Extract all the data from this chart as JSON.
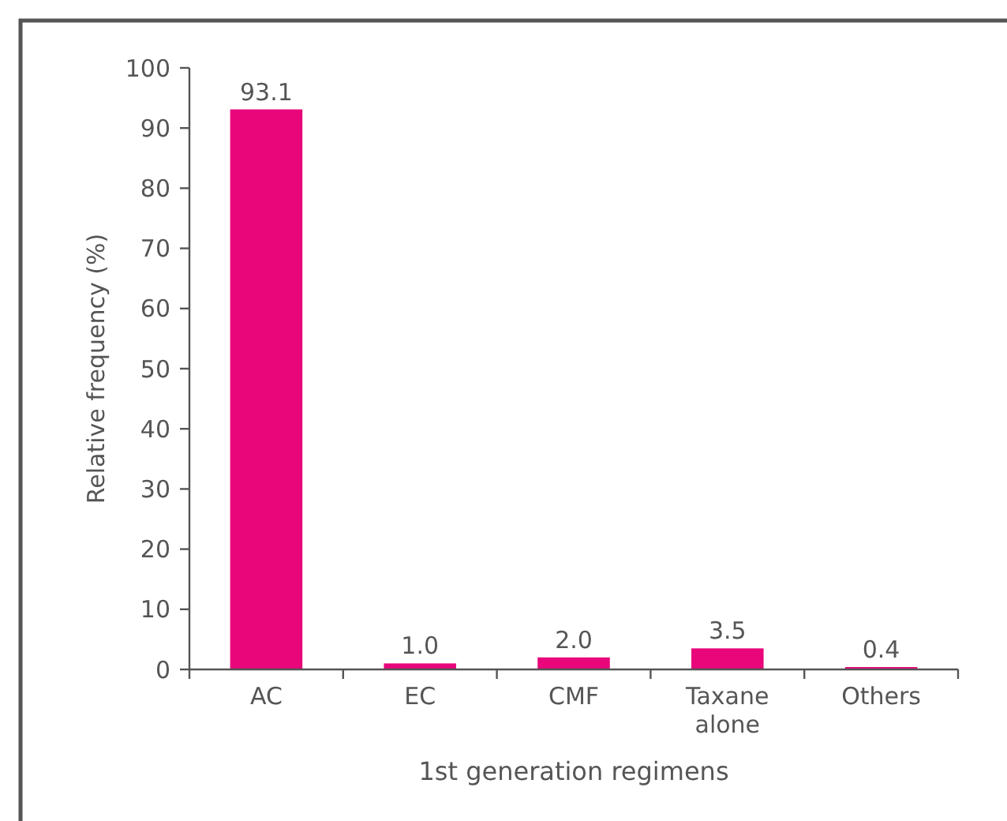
{
  "chart_data": {
    "type": "bar",
    "xlabel": "1st generation regimens",
    "ylabel": "Relative frequency (%)",
    "categories": [
      "AC",
      "EC",
      "CMF",
      "Taxane alone",
      "Others"
    ],
    "values": [
      93.1,
      1.0,
      2.0,
      3.5,
      0.4
    ],
    "value_labels": [
      "93.1",
      "1.0",
      "2.0",
      "3.5",
      "0.4"
    ],
    "color": "#e8067a",
    "ylim": [
      0,
      100
    ],
    "yticks": [
      0,
      10,
      20,
      30,
      40,
      50,
      60,
      70,
      80,
      90,
      100
    ],
    "grid": false
  }
}
